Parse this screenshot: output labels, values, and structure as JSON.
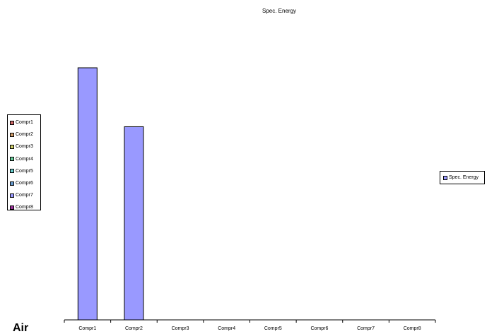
{
  "chart_data": {
    "type": "bar",
    "title": "Spec. Energy",
    "categories": [
      "Compr1",
      "Compr2",
      "Compr3",
      "Compr4",
      "Compr5",
      "Compr6",
      "Compr7",
      "Compr8"
    ],
    "series": [
      {
        "name": "Spec. Energy",
        "values": [
          355,
          272,
          0,
          0,
          0,
          0,
          0,
          0
        ],
        "color": "#9999ff"
      }
    ],
    "ylim": [
      0,
      360
    ],
    "grid": false,
    "legend_position": "right"
  },
  "left_legend": {
    "items": [
      {
        "label": "Compr1",
        "color": "#cc6666"
      },
      {
        "label": "Compr2",
        "color": "#cc9966"
      },
      {
        "label": "Compr3",
        "color": "#cccc66"
      },
      {
        "label": "Compr4",
        "color": "#66cc99"
      },
      {
        "label": "Compr5",
        "color": "#66cccc"
      },
      {
        "label": "Compr6",
        "color": "#6699cc"
      },
      {
        "label": "Compr7",
        "color": "#9999ff"
      },
      {
        "label": "Compr8",
        "color": "#993399"
      }
    ]
  },
  "corner_text": "Air"
}
